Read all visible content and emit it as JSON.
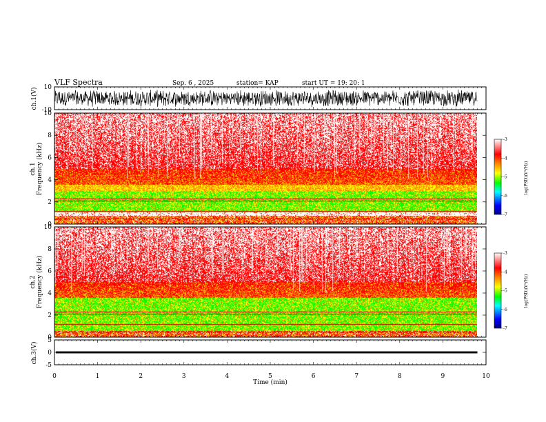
{
  "header": {
    "title": "VLF Spectra",
    "date": "Sep. 6 , 2025",
    "station": "station= KAP",
    "start": "start  UT =   19: 20: 1"
  },
  "colors": {
    "white": "#ffffff",
    "red": "#ff0000",
    "orange": "#ff8000",
    "yellow": "#ffff00",
    "green": "#00ff00",
    "cyan": "#00ffff",
    "blue": "#0000ff",
    "navy": "#000080",
    "black": "#000000"
  },
  "chart_data": [
    {
      "type": "line",
      "id": "ch1_waveform",
      "ylabel": "ch.1(V)",
      "ylim": [
        -10,
        10
      ],
      "yticks": [
        "10",
        "-10"
      ],
      "xlim": [
        0,
        9.8
      ],
      "description_values": {
        "min": -10,
        "max": 10,
        "typical_amplitude": 8
      }
    },
    {
      "type": "heatmap",
      "id": "ch1_spectrogram",
      "ylabel_lines": [
        "ch.1",
        "Frequency  (kHz)"
      ],
      "ylim": [
        0,
        10
      ],
      "yticks": [
        "0",
        "2",
        "4",
        "6",
        "8",
        "10"
      ],
      "xlim": [
        0,
        9.8
      ],
      "bands_khz": [
        {
          "from": 0.0,
          "to": 0.8,
          "level": "mixed"
        },
        {
          "from": 0.8,
          "to": 1.1,
          "level": "white_line"
        },
        {
          "from": 1.1,
          "to": 3.5,
          "level": "green_yellow"
        },
        {
          "from": 3.5,
          "to": 5.0,
          "level": "orange_red"
        },
        {
          "from": 5.0,
          "to": 10.0,
          "level": "speckled_red"
        }
      ],
      "colorbar": {
        "label": "log(PSD)(V²/Hz)",
        "range": [
          -7,
          -3
        ],
        "ticks": [
          "-3",
          "-4",
          "-5",
          "-6",
          "-7"
        ]
      }
    },
    {
      "type": "heatmap",
      "id": "ch2_spectrogram",
      "ylabel_lines": [
        "ch.2",
        "Frequency  (kHz)"
      ],
      "ylim": [
        0,
        10
      ],
      "yticks": [
        "0",
        "2",
        "4",
        "6",
        "8",
        "10"
      ],
      "xlim": [
        0,
        9.8
      ],
      "bands_khz": [
        {
          "from": 0.0,
          "to": 0.6,
          "level": "mixed"
        },
        {
          "from": 0.6,
          "to": 3.2,
          "level": "green_yellow"
        },
        {
          "from": 3.2,
          "to": 5.0,
          "level": "orange_red"
        },
        {
          "from": 5.0,
          "to": 10.0,
          "level": "speckled_red"
        }
      ],
      "colorbar": {
        "label": "log(PSD)(V²/Hz)",
        "range": [
          -7,
          -3
        ],
        "ticks": [
          "-3",
          "-4",
          "-5",
          "-6",
          "-7"
        ]
      }
    },
    {
      "type": "line",
      "id": "ch3_waveform",
      "ylabel": "ch.3(V)",
      "ylim": [
        -5,
        5
      ],
      "yticks": [
        "5",
        "0",
        "-5"
      ],
      "xlim": [
        0,
        9.8
      ],
      "description_values": {
        "level": 0,
        "thickness_v": 0.8
      }
    }
  ],
  "xaxis": {
    "label": "Time  (min)",
    "range": [
      0,
      10
    ],
    "ticks": [
      "0",
      "1",
      "2",
      "3",
      "4",
      "5",
      "6",
      "7",
      "8",
      "9",
      "10"
    ]
  }
}
